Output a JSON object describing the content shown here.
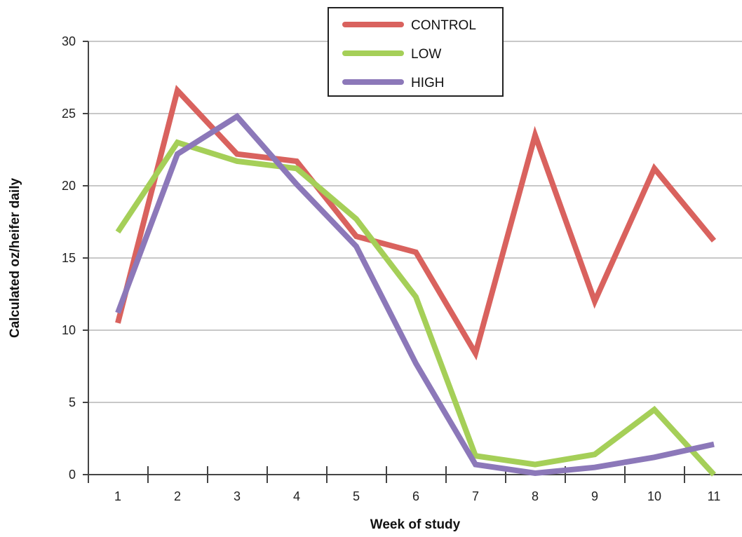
{
  "chart_data": {
    "type": "line",
    "title": "",
    "xlabel": "Week of study",
    "ylabel": "Calculated oz/heifer daily",
    "x": [
      "1",
      "2",
      "3",
      "4",
      "5",
      "6",
      "7",
      "8",
      "9",
      "10",
      "11"
    ],
    "ylim": [
      0,
      30
    ],
    "yticks": [
      "0",
      "5",
      "10",
      "15",
      "20",
      "25",
      "30"
    ],
    "grid": "horizontal",
    "legend_position": "top-center",
    "series": [
      {
        "name": "CONTROL",
        "color": "#d9625e",
        "values": [
          10.5,
          26.6,
          22.2,
          21.7,
          16.5,
          15.4,
          8.4,
          23.5,
          12.0,
          21.2,
          16.2
        ]
      },
      {
        "name": "LOW",
        "color": "#a5cf58",
        "values": [
          16.8,
          23.0,
          21.7,
          21.2,
          17.7,
          12.3,
          1.3,
          0.7,
          1.4,
          4.5,
          0.0
        ]
      },
      {
        "name": "HIGH",
        "color": "#8c78b9",
        "values": [
          11.2,
          22.2,
          24.8,
          20.1,
          15.8,
          7.7,
          0.7,
          0.1,
          0.5,
          1.2,
          2.1
        ]
      }
    ]
  }
}
